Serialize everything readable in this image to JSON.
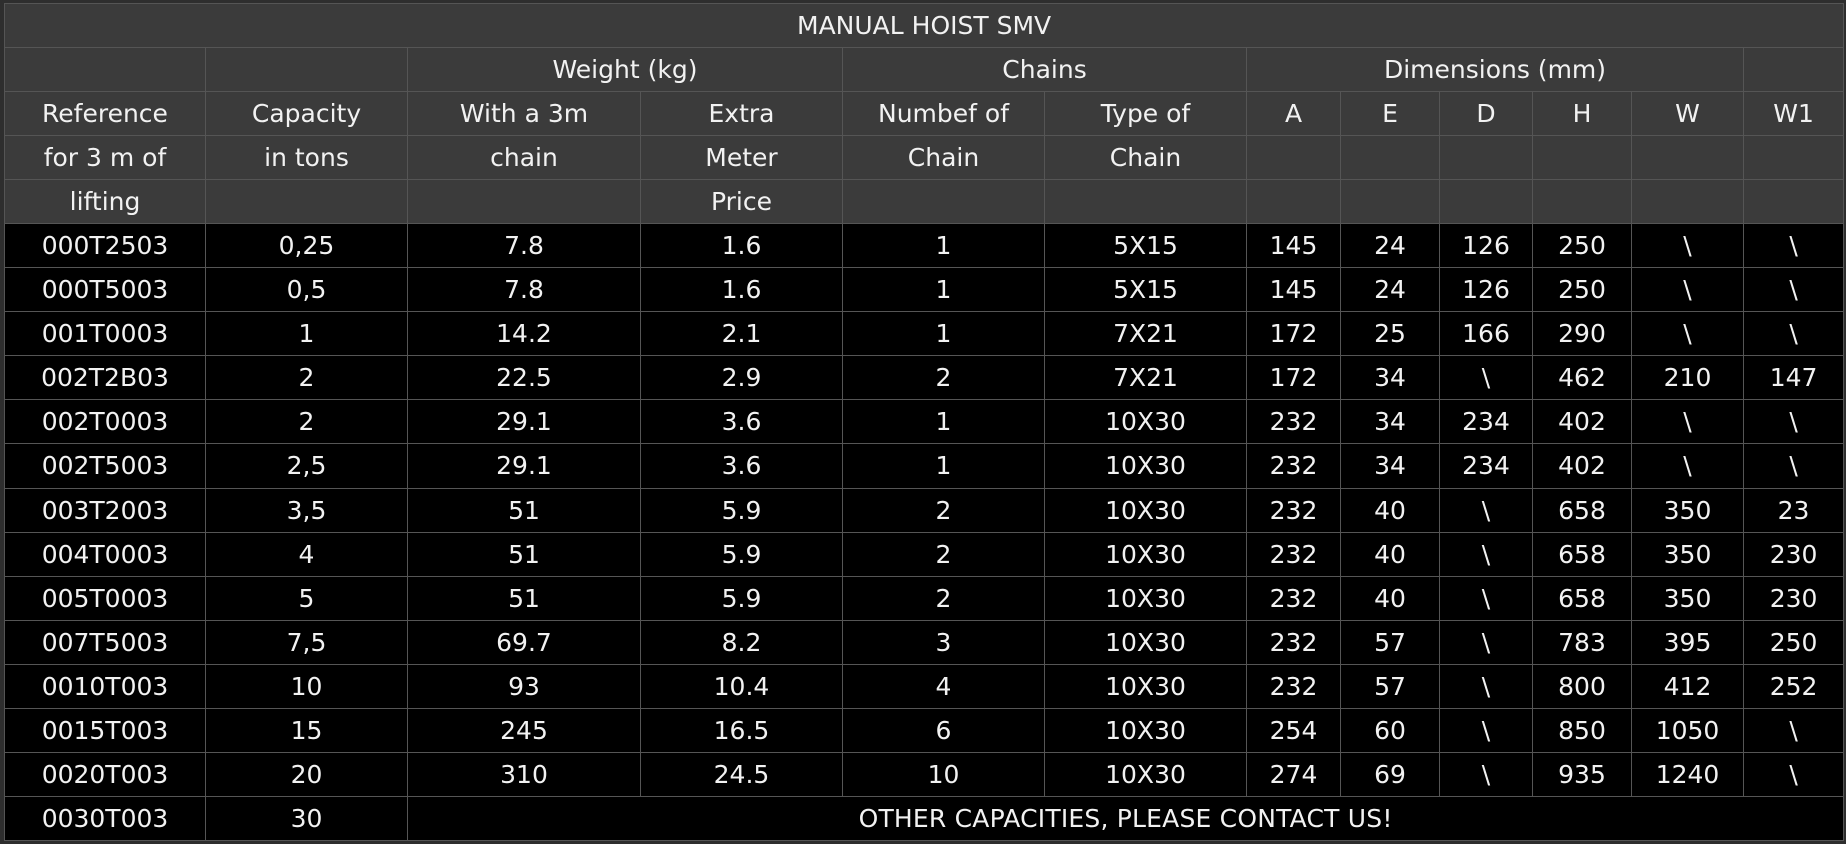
{
  "title": "MANUAL HOIST SMV",
  "group_headers": {
    "weight": "Weight (kg)",
    "chains": "Chains",
    "dimensions": "Dimensions (mm)"
  },
  "column_headers": {
    "reference": [
      "Reference",
      "for 3 m of",
      "lifting"
    ],
    "capacity": [
      "Capacity",
      "in tons"
    ],
    "with_3m": [
      "With a 3m",
      "chain"
    ],
    "extra_meter": [
      "Extra",
      "Meter",
      "Price"
    ],
    "number_of_chain": [
      "Numbef of",
      "Chain"
    ],
    "type_of_chain": [
      "Type of",
      "Chain"
    ],
    "A": "A",
    "E": "E",
    "D": "D",
    "H": "H",
    "W": "W",
    "W1": "W1"
  },
  "rows": [
    [
      "000T2503",
      "0,25",
      "7.8",
      "1.6",
      "1",
      "5X15",
      "145",
      "24",
      "126",
      "250",
      "\\",
      "\\"
    ],
    [
      "000T5003",
      "0,5",
      "7.8",
      "1.6",
      "1",
      "5X15",
      "145",
      "24",
      "126",
      "250",
      "\\",
      "\\"
    ],
    [
      "001T0003",
      "1",
      "14.2",
      "2.1",
      "1",
      "7X21",
      "172",
      "25",
      "166",
      "290",
      "\\",
      "\\"
    ],
    [
      "002T2B03",
      "2",
      "22.5",
      "2.9",
      "2",
      "7X21",
      "172",
      "34",
      "\\",
      "462",
      "210",
      "147"
    ],
    [
      "002T0003",
      "2",
      "29.1",
      "3.6",
      "1",
      "10X30",
      "232",
      "34",
      "234",
      "402",
      "\\",
      "\\"
    ],
    [
      "002T5003",
      "2,5",
      "29.1",
      "3.6",
      "1",
      "10X30",
      "232",
      "34",
      "234",
      "402",
      "\\",
      "\\"
    ],
    [
      "003T2003",
      "3,5",
      "51",
      "5.9",
      "2",
      "10X30",
      "232",
      "40",
      "\\",
      "658",
      "350",
      "23"
    ],
    [
      "004T0003",
      "4",
      "51",
      "5.9",
      "2",
      "10X30",
      "232",
      "40",
      "\\",
      "658",
      "350",
      "230"
    ],
    [
      "005T0003",
      "5",
      "51",
      "5.9",
      "2",
      "10X30",
      "232",
      "40",
      "\\",
      "658",
      "350",
      "230"
    ],
    [
      "007T5003",
      "7,5",
      "69.7",
      "8.2",
      "3",
      "10X30",
      "232",
      "57",
      "\\",
      "783",
      "395",
      "250"
    ],
    [
      "0010T003",
      "10",
      "93",
      "10.4",
      "4",
      "10X30",
      "232",
      "57",
      "\\",
      "800",
      "412",
      "252"
    ],
    [
      "0015T003",
      "15",
      "245",
      "16.5",
      "6",
      "10X30",
      "254",
      "60",
      "\\",
      "850",
      "1050",
      "\\"
    ],
    [
      "0020T003",
      "20",
      "310",
      "24.5",
      "10",
      "10X30",
      "274",
      "69",
      "\\",
      "935",
      "1240",
      "\\"
    ]
  ],
  "last_row": {
    "reference": "0030T003",
    "capacity": "30",
    "note": "OTHER CAPACITIES, PLEASE CONTACT US!"
  }
}
